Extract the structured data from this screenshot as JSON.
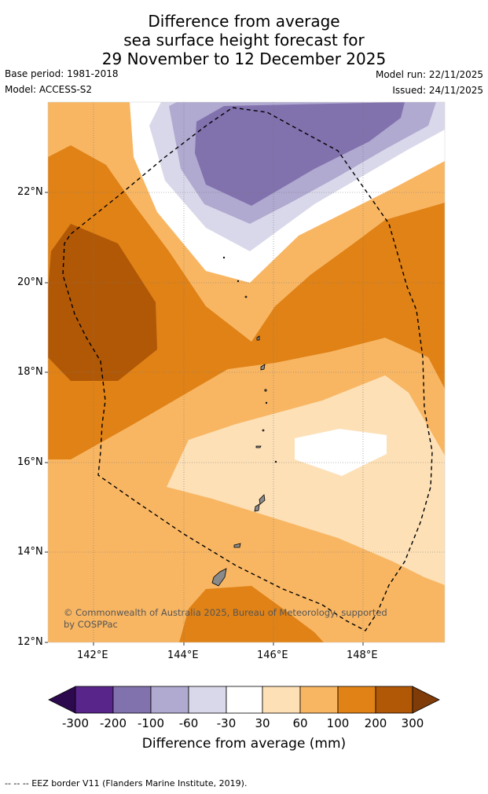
{
  "title": {
    "line1": "Difference from average",
    "line2": "sea surface height forecast for",
    "line3": "29 November to 12 December 2025"
  },
  "meta": {
    "base_period": "Base period: 1981-2018",
    "model": "Model: ACCESS-S2",
    "model_run": "Model run: 22/11/2025",
    "issued": "Issued: 24/11/2025"
  },
  "axes": {
    "lat_labels": [
      "22°N",
      "20°N",
      "18°N",
      "16°N",
      "14°N",
      "12°N"
    ],
    "lon_labels": [
      "142°E",
      "144°E",
      "146°E",
      "148°E"
    ]
  },
  "copyright": {
    "line1": "© Commonwealth of Australia 2025, Bureau of Meteorology, supported",
    "line2": "by COSPPac"
  },
  "colorbar": {
    "labels": [
      "-300",
      "-200",
      "-100",
      "-60",
      "-30",
      "30",
      "60",
      "100",
      "200",
      "300"
    ],
    "title": "Difference from average (mm)",
    "colors": [
      "#2d0a4e",
      "#58258a",
      "#8171ad",
      "#b0a9d0",
      "#d9d8ea",
      "#ffffff",
      "#fde0b6",
      "#f8b663",
      "#e08216",
      "#b15806",
      "#7f3b08"
    ]
  },
  "footer": "-- -- -- EEZ border V11 (Flanders Marine Institute, 2019)."
}
